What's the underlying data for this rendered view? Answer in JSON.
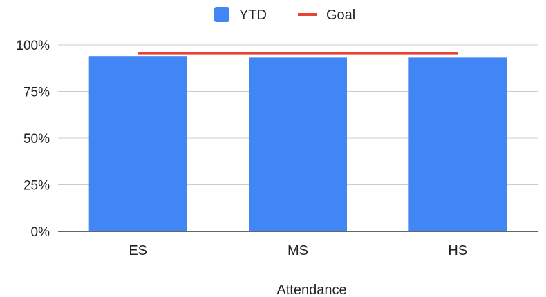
{
  "chart_data": {
    "type": "bar",
    "categories": [
      "ES",
      "MS",
      "HS"
    ],
    "series": [
      {
        "name": "YTD",
        "type": "bar",
        "values": [
          94,
          93.2,
          93.2
        ],
        "color": "#4285f4"
      },
      {
        "name": "Goal",
        "type": "line",
        "values": [
          95.5,
          95.5,
          95.5
        ],
        "color": "#ea4335"
      }
    ],
    "xlabel": "Attendance",
    "ylabel": "",
    "ylim": [
      0,
      100
    ],
    "yticks": [
      0,
      25,
      50,
      75,
      100
    ],
    "ytick_labels": [
      "0%",
      "25%",
      "50%",
      "75%",
      "100%"
    ],
    "grid": true,
    "legend_position": "top-center",
    "colors": {
      "bar": "#4285f4",
      "goal": "#ea4335",
      "grid": "#cccccc",
      "axis": "#333333"
    }
  }
}
